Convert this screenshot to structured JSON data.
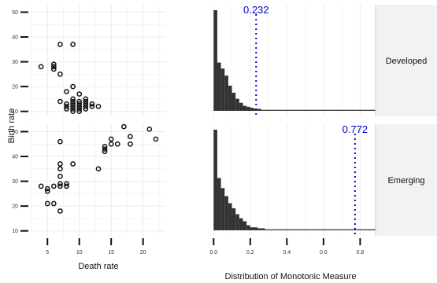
{
  "chart_data": [
    {
      "type": "scatter",
      "title": "",
      "xlabel": "Death rate",
      "ylabel": "Birth rate",
      "xlim": [
        2.5,
        23.5
      ],
      "ylim": [
        8,
        53
      ],
      "xticks": [
        5,
        10,
        15,
        20
      ],
      "yticks": [
        10,
        20,
        30,
        40,
        50
      ],
      "grid": true,
      "panels": [
        {
          "name": "Developed",
          "points": [
            [
              4,
              28
            ],
            [
              6,
              29
            ],
            [
              6,
              28
            ],
            [
              6,
              27
            ],
            [
              7,
              37
            ],
            [
              9,
              37
            ],
            [
              7,
              25
            ],
            [
              7,
              14
            ],
            [
              8,
              18
            ],
            [
              9,
              20
            ],
            [
              10,
              17
            ],
            [
              8,
              13
            ],
            [
              8,
              12
            ],
            [
              9,
              15
            ],
            [
              9,
              14
            ],
            [
              9,
              13
            ],
            [
              9,
              12
            ],
            [
              9,
              11
            ],
            [
              9,
              10
            ],
            [
              10,
              14
            ],
            [
              10,
              13
            ],
            [
              10,
              12
            ],
            [
              10,
              11
            ],
            [
              11,
              15
            ],
            [
              11,
              14
            ],
            [
              11,
              13
            ],
            [
              11,
              12
            ],
            [
              11,
              11
            ],
            [
              12,
              13
            ],
            [
              12,
              12
            ],
            [
              13,
              12
            ],
            [
              8,
              11
            ],
            [
              10,
              10
            ]
          ]
        },
        {
          "name": "Emerging",
          "points": [
            [
              4,
              28
            ],
            [
              5,
              27
            ],
            [
              5,
              26
            ],
            [
              5,
              21
            ],
            [
              6,
              28
            ],
            [
              6,
              21
            ],
            [
              7,
              46
            ],
            [
              7,
              37
            ],
            [
              7,
              35
            ],
            [
              7,
              32
            ],
            [
              7,
              29
            ],
            [
              7,
              28
            ],
            [
              7,
              18
            ],
            [
              8,
              29
            ],
            [
              8,
              28
            ],
            [
              9,
              37
            ],
            [
              13,
              35
            ],
            [
              14,
              44
            ],
            [
              14,
              43
            ],
            [
              14,
              42
            ],
            [
              15,
              45
            ],
            [
              15,
              47
            ],
            [
              16,
              45
            ],
            [
              17,
              52
            ],
            [
              18,
              48
            ],
            [
              18,
              45
            ],
            [
              21,
              51
            ],
            [
              22,
              47
            ]
          ]
        }
      ]
    },
    {
      "type": "bar",
      "title": "",
      "xlabel": "Distribution of Monotonic Measure",
      "ylabel": "",
      "xlim": [
        -0.04,
        0.88
      ],
      "xticks": [
        "0.0",
        "0.2",
        "0.4",
        "0.6",
        "0.8"
      ],
      "bin_width": 0.02,
      "grid": true,
      "panels": [
        {
          "name": "Developed",
          "bin_start": 0,
          "counts": [
            100,
            48,
            42,
            35,
            25,
            18,
            12,
            8,
            5,
            4,
            3,
            2,
            2,
            1,
            1,
            1,
            1,
            1,
            1,
            1,
            1,
            1,
            1,
            1,
            1,
            1,
            1,
            1,
            1,
            1,
            1,
            1,
            1,
            1,
            1,
            1,
            1,
            1,
            1,
            1,
            1,
            1,
            1,
            1,
            1,
            1,
            1,
            1,
            1,
            1,
            1,
            1,
            1,
            1,
            1,
            1,
            1,
            1,
            1,
            1,
            1,
            1,
            1,
            1,
            1,
            1,
            1,
            1,
            1,
            1,
            1,
            1,
            1,
            1,
            1,
            1,
            1,
            1,
            1,
            1,
            1,
            1,
            1,
            1,
            1,
            1,
            1,
            1,
            1,
            1
          ],
          "reference_line": 0.232,
          "reference_label": "0.232",
          "reference_color": "#0000cc"
        },
        {
          "name": "Emerging",
          "bin_start": 0,
          "counts": [
            100,
            52,
            42,
            34,
            27,
            22,
            16,
            12,
            9,
            5,
            3,
            3,
            2,
            2,
            1,
            1,
            1,
            1,
            1,
            1,
            1,
            1,
            1,
            1,
            1,
            1,
            1,
            1,
            1,
            1,
            1,
            1,
            1,
            1,
            1,
            1,
            1,
            1,
            1,
            1,
            1,
            1,
            1,
            1,
            1,
            1,
            1,
            1,
            1,
            1,
            1,
            1,
            1,
            1,
            1,
            1,
            1,
            1,
            1,
            1,
            1,
            1,
            1,
            1,
            1,
            1,
            1,
            1,
            1,
            1,
            1,
            1,
            1,
            1,
            1,
            1,
            1,
            1,
            1,
            1,
            1,
            1,
            1,
            1,
            1,
            1,
            1,
            1,
            1,
            1
          ],
          "reference_line": 0.772,
          "reference_label": "0.772",
          "reference_color": "#0000cc"
        }
      ]
    }
  ],
  "colors": {
    "panel_background": "#ffffff",
    "grid": "#ebebeb",
    "strip_background": "#f2f2f2",
    "strip_border": "#cccccc",
    "points": "#111111",
    "bars": "#333333",
    "reference": "#0000cc"
  }
}
